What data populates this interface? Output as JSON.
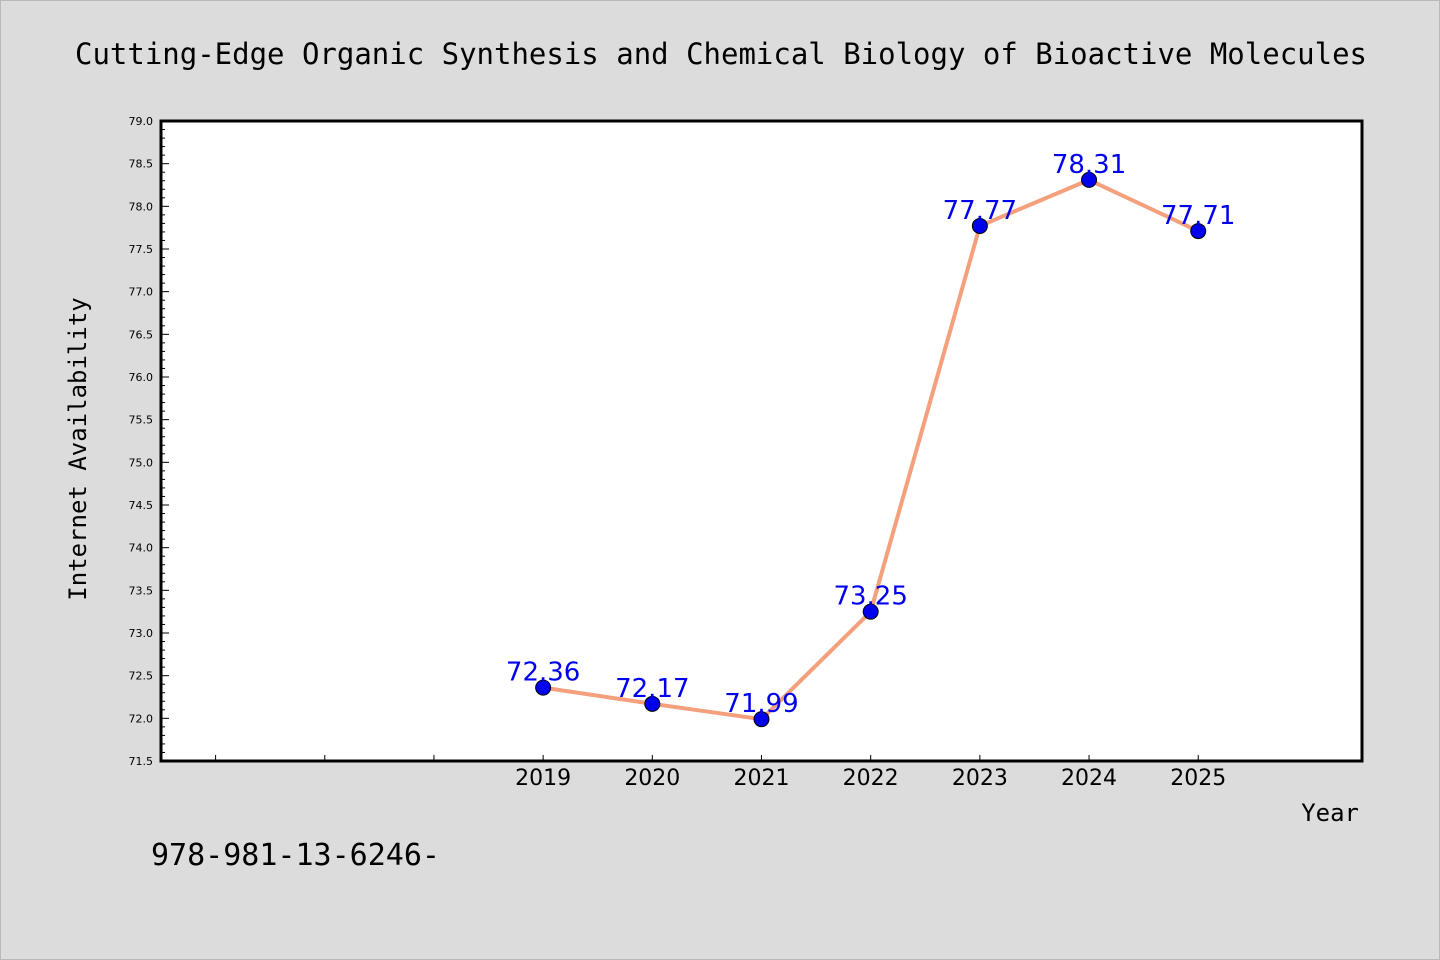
{
  "chart_data": {
    "type": "line",
    "title": "Cutting-Edge Organic Synthesis and Chemical Biology of Bioactive Molecules",
    "xlabel": "Year",
    "ylabel": "Internet Availability",
    "x": [
      2019,
      2020,
      2021,
      2022,
      2023,
      2024,
      2025
    ],
    "x_tick_labels": [
      "2019",
      "2020",
      "2021",
      "2022",
      "2023",
      "2024",
      "2025"
    ],
    "xlim": [
      2015.5,
      2026.5
    ],
    "values": [
      72.36,
      72.17,
      71.99,
      73.25,
      77.77,
      78.31,
      77.71
    ],
    "data_labels": [
      "72.36",
      "72.17",
      "71.99",
      "73.25",
      "77.77",
      "78.31",
      "77.71"
    ],
    "ylim": [
      71.5,
      79.0
    ],
    "y_ticks": [
      "71.5",
      "72.0",
      "72.5",
      "73.0",
      "73.5",
      "74.0",
      "74.5",
      "75.0",
      "75.5",
      "76.0",
      "76.5",
      "77.0",
      "77.5",
      "78.0",
      "78.5",
      "79.0"
    ],
    "grid": false,
    "legend": "none",
    "line_color": "#f4a07c",
    "marker_color": "#0000ee",
    "label_color": "#0000ee"
  },
  "footer": {
    "isbn": "978-981-13-6246-"
  }
}
